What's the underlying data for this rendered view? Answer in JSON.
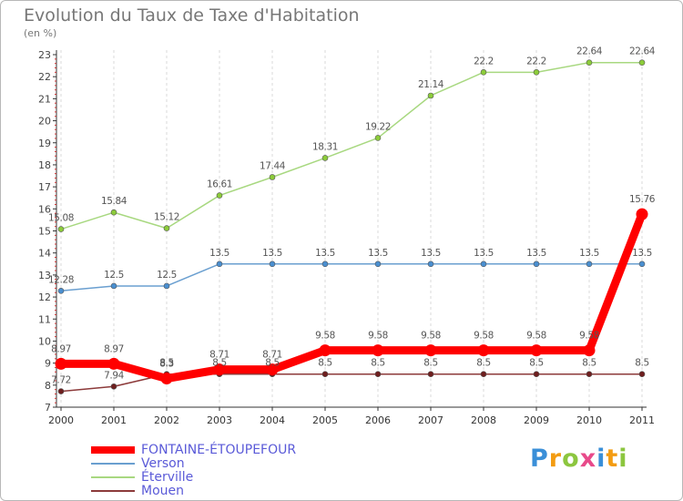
{
  "title": "Evolution du Taux de Taxe d'Habitation",
  "subtitle": "(en %)",
  "logo": {
    "letters": [
      {
        "ch": "P",
        "color": "#3a8fd8"
      },
      {
        "ch": "r",
        "color": "#f39c12"
      },
      {
        "ch": "o",
        "color": "#8cc63f"
      },
      {
        "ch": "x",
        "color": "#e84a8a"
      },
      {
        "ch": "i",
        "color": "#3a8fd8"
      },
      {
        "ch": "t",
        "color": "#f39c12"
      },
      {
        "ch": "i",
        "color": "#8cc63f"
      }
    ]
  },
  "chart_data": {
    "type": "line",
    "x": [
      "2000",
      "2001",
      "2002",
      "2003",
      "2004",
      "2005",
      "2006",
      "2007",
      "2008",
      "2009",
      "2010",
      "2011"
    ],
    "ylim": [
      7,
      23
    ],
    "yticks": [
      7,
      8,
      9,
      10,
      11,
      12,
      13,
      14,
      15,
      16,
      17,
      18,
      19,
      20,
      21,
      22,
      23
    ],
    "grid": "x-only",
    "legend": "bottom-left",
    "series": [
      {
        "name": "Éterville",
        "color": "#8ccc5a",
        "values": [
          15.08,
          15.84,
          15.12,
          16.61,
          17.44,
          18.31,
          19.22,
          21.14,
          22.2,
          22.2,
          22.64,
          22.64
        ],
        "labels": [
          "15.08",
          "15.84",
          "15.12",
          "16.61",
          "17.44",
          "18.31",
          "19.22",
          "21.14",
          "22.2",
          "22.2",
          "22.64",
          "22.64"
        ]
      },
      {
        "name": "Verson",
        "color": "#6a9fd0",
        "values": [
          12.28,
          12.5,
          12.5,
          13.5,
          13.5,
          13.5,
          13.5,
          13.5,
          13.5,
          13.5,
          13.5,
          13.5
        ],
        "labels": [
          "12.28",
          "12.5",
          "12.5",
          "13.5",
          "13.5",
          "13.5",
          "13.5",
          "13.5",
          "13.5",
          "13.5",
          "13.5",
          "13.5"
        ]
      },
      {
        "name": "Mouen",
        "color": "#8c3a3a",
        "values": [
          7.72,
          7.94,
          8.5,
          8.5,
          8.5,
          8.5,
          8.5,
          8.5,
          8.5,
          8.5,
          8.5,
          8.5
        ],
        "labels": [
          "7.72",
          "7.94",
          "8.5",
          "8.5",
          "8.5",
          "8.5",
          "8.5",
          "8.5",
          "8.5",
          "8.5",
          "8.5",
          "8.5"
        ]
      },
      {
        "name": "FONTAINE-ÉTOUPEFOUR",
        "color": "#ff0000",
        "values": [
          8.97,
          8.97,
          8.3,
          8.71,
          8.71,
          9.58,
          9.58,
          9.58,
          9.58,
          9.58,
          9.58,
          15.76
        ],
        "labels": [
          "8.97",
          "8.97",
          "8.3",
          "8.71",
          "8.71",
          "9.58",
          "9.58",
          "9.58",
          "9.58",
          "9.58",
          "9.58",
          "15.76"
        ]
      }
    ],
    "legend_order": [
      "FONTAINE-ÉTOUPEFOUR",
      "Verson",
      "Éterville",
      "Mouen"
    ]
  }
}
